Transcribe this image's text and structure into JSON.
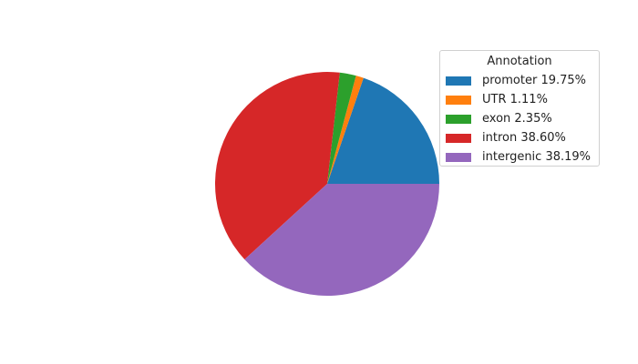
{
  "chart_data": {
    "type": "pie",
    "legend_title": "Annotation",
    "legend_position": "upper-right",
    "start_angle": 0,
    "direction": "counterclockwise",
    "slices": [
      {
        "label": "promoter 19.75%",
        "category": "promoter",
        "value": 19.75,
        "color": "#1f77b4"
      },
      {
        "label": "UTR 1.11%",
        "category": "UTR",
        "value": 1.11,
        "color": "#ff7f0e"
      },
      {
        "label": "exon 2.35%",
        "category": "exon",
        "value": 2.35,
        "color": "#2ca02c"
      },
      {
        "label": "intron 38.60%",
        "category": "intron",
        "value": 38.6,
        "color": "#d62728"
      },
      {
        "label": "intergenic 38.19%",
        "category": "intergenic",
        "value": 38.19,
        "color": "#9467bd"
      }
    ]
  }
}
